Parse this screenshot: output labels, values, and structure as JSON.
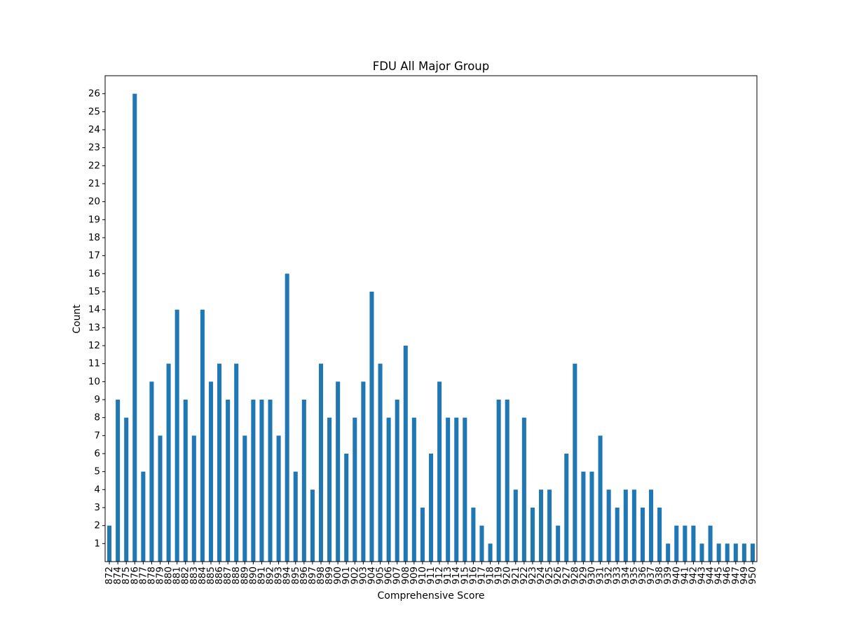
{
  "chart_data": {
    "type": "bar",
    "title": "FDU All Major Group",
    "xlabel": "Comprehensive Score",
    "ylabel": "Count",
    "categories": [
      "872",
      "874",
      "875",
      "876",
      "877",
      "878",
      "879",
      "880",
      "881",
      "882",
      "883",
      "884",
      "885",
      "886",
      "887",
      "888",
      "889",
      "890",
      "891",
      "892",
      "893",
      "894",
      "895",
      "896",
      "897",
      "898",
      "899",
      "900",
      "901",
      "902",
      "903",
      "904",
      "905",
      "906",
      "907",
      "908",
      "909",
      "910",
      "911",
      "912",
      "913",
      "914",
      "915",
      "916",
      "917",
      "918",
      "919",
      "920",
      "921",
      "922",
      "923",
      "924",
      "925",
      "926",
      "927",
      "928",
      "929",
      "930",
      "931",
      "932",
      "933",
      "934",
      "935",
      "936",
      "937",
      "938",
      "939",
      "940",
      "941",
      "942",
      "943",
      "944",
      "945",
      "946",
      "947",
      "949",
      "950"
    ],
    "values": [
      2,
      9,
      8,
      26,
      5,
      10,
      7,
      11,
      14,
      9,
      7,
      14,
      10,
      11,
      9,
      11,
      7,
      9,
      9,
      9,
      7,
      16,
      5,
      9,
      4,
      11,
      8,
      10,
      6,
      8,
      10,
      15,
      11,
      8,
      9,
      12,
      8,
      3,
      6,
      10,
      8,
      8,
      8,
      3,
      2,
      1,
      9,
      9,
      4,
      8,
      3,
      4,
      4,
      2,
      6,
      11,
      5,
      5,
      7,
      4,
      3,
      4,
      4,
      3,
      4,
      3,
      1,
      2,
      2,
      2,
      1,
      2,
      1,
      1,
      1,
      1,
      1
    ],
    "ylim": [
      0,
      27
    ],
    "yticks": [
      1,
      2,
      3,
      4,
      5,
      6,
      7,
      8,
      9,
      10,
      11,
      12,
      13,
      14,
      15,
      16,
      17,
      18,
      19,
      20,
      21,
      22,
      23,
      24,
      25,
      26
    ],
    "grid": false,
    "legend": "none",
    "bar_color": "#1f77b4"
  }
}
